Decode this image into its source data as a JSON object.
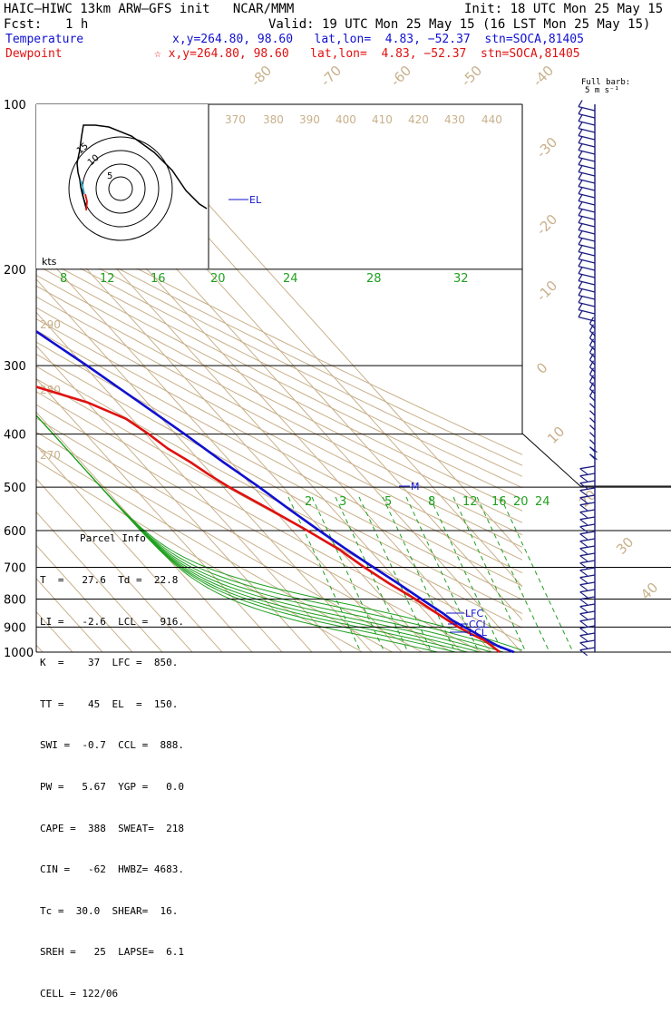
{
  "header": {
    "model": "HAIC–HIWC 13km ARW–GFS init   NCAR/MMM",
    "init": "Init: 18 UTC Mon 25 May 15",
    "fcst_label": "Fcst:",
    "fcst_value": "1 h",
    "valid": "Valid: 19 UTC Mon 25 May 15 (16 LST Mon 25 May 15)",
    "temperature_label": "Temperature",
    "temperature_loc": "x,y=264.80, 98.60   lat,lon=  4.83, −52.37  stn=SOCA,81405",
    "dewpoint_label": "Dewpoint",
    "dewpoint_loc": "☆ x,y=264.80, 98.60   lat,lon=  4.83, −52.37  stn=SOCA,81405",
    "temperature_color": "#1010d0",
    "dewpoint_color": "#e01010"
  },
  "barb_label": {
    "line1": "Full barb:",
    "line2": "5 m s⁻¹"
  },
  "hodograph": {
    "units": "kts",
    "ring_labels": [
      "5",
      "10",
      "15"
    ]
  },
  "parcel_info": {
    "title": "Parcel Info",
    "rows": [
      "T  =   27.6  Td =  22.8",
      "LI =   -2.6  LCL =  916.",
      "K  =    37  LFC =  850.",
      "TT =    45  EL  =  150.",
      "SWI =  -0.7  CCL =  888.",
      "PW =   5.67  YGP =   0.0",
      "CAPE =  388  SWEAT=  218",
      "CIN =   -62  HWBZ= 4683.",
      "Tc =  30.0  SHEAR=  16.",
      "SREH =   25  LAPSE=  6.1",
      "CELL = 122/06"
    ]
  },
  "chart_data": {
    "type": "line",
    "diagram": "skew-T log-p",
    "title": "",
    "y_axis": {
      "label": "",
      "scale": "log",
      "ticks": [
        100,
        200,
        300,
        400,
        500,
        600,
        700,
        800,
        900,
        1000
      ]
    },
    "isotherm_labels": [
      "-80",
      "-70",
      "-60",
      "-50",
      "-40",
      "-30",
      "-20",
      "-10",
      "0",
      "10",
      "20",
      "30",
      "40"
    ],
    "theta_labels": [
      "370",
      "380",
      "390",
      "400",
      "410",
      "420",
      "430",
      "440",
      "290",
      "280",
      "270"
    ],
    "mixing_ratio_labels_upper": [
      "8",
      "12",
      "16",
      "20",
      "24",
      "28",
      "32"
    ],
    "mixing_ratio_labels_lower": [
      "2",
      "3",
      "4",
      "5",
      "6",
      "8",
      "12",
      "16",
      "20",
      "24"
    ],
    "level_markers": [
      "EL",
      "M",
      "LFC",
      "CCL",
      "LCL"
    ],
    "series": [
      {
        "name": "Temperature",
        "color": "#1010d0",
        "p": [
          1000,
          975,
          950,
          925,
          900,
          875,
          850,
          800,
          750,
          700,
          650,
          600,
          550,
          500,
          450,
          400,
          350,
          300,
          250,
          200,
          175,
          150,
          125,
          110,
          100
        ],
        "t": [
          27.5,
          24.0,
          22.0,
          20.5,
          18.5,
          16.5,
          15.5,
          12.5,
          9.5,
          6.0,
          2.5,
          -1.0,
          -4.5,
          -8.0,
          -12.5,
          -17.0,
          -22.5,
          -29.0,
          -37.5,
          -48.0,
          -55.0,
          -63.0,
          -73.0,
          -77.0,
          -78.0
        ]
      },
      {
        "name": "Dewpoint",
        "color": "#e01010",
        "p": [
          1000,
          975,
          950,
          925,
          900,
          875,
          850,
          800,
          750,
          700,
          650,
          600,
          550,
          500,
          475,
          450,
          425,
          400,
          375,
          350,
          325,
          300,
          275,
          250,
          225,
          200,
          175,
          150,
          125,
          110,
          100
        ],
        "td": [
          22.8,
          22.0,
          21.0,
          18.5,
          16.5,
          15.0,
          13.5,
          10.5,
          6.5,
          3.0,
          0.0,
          -5.0,
          -11.0,
          -18.0,
          -21.0,
          -23.5,
          -27.0,
          -29.0,
          -32.0,
          -40.0,
          -54.0,
          -66.0,
          -65.0,
          -64.0,
          -68.0,
          -75.0,
          -80.0,
          -82.0,
          -88.0,
          -90.0,
          -90.0
        ]
      }
    ]
  }
}
